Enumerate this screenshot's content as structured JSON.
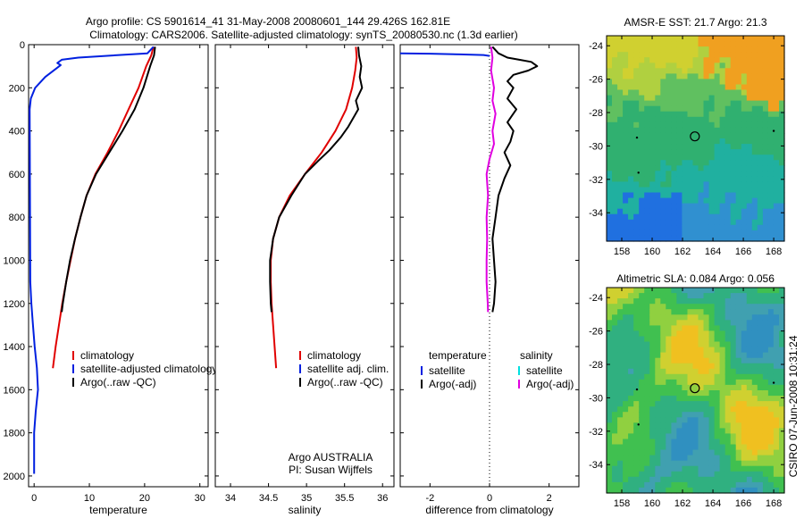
{
  "header": {
    "line1": "Argo profile: CS 5901614_41 31-May-2008 20080601_144 29.426S 162.81E",
    "line2": "Climatology: CARS2006. Satellite-adjusted climatology: synTS_20080530.nc (1.3d earlier)"
  },
  "side_text": "CSIRO 07-Jun-2008 10:31:24",
  "colors": {
    "climatology": "#e00000",
    "satellite": "#0020e0",
    "argo": "#000000",
    "salinity_satellite": "#00e0e0",
    "salinity_argo": "#e000e0"
  },
  "chart_data": [
    {
      "id": "temperature",
      "type": "line",
      "xlabel": "temperature",
      "ylabel": "",
      "xlim": [
        -1,
        31.5
      ],
      "ylim": [
        2050,
        0
      ],
      "x_ticks": [
        0,
        10,
        20,
        30
      ],
      "y_ticks": [
        0,
        200,
        400,
        600,
        800,
        1000,
        1200,
        1400,
        1600,
        1800,
        2000
      ],
      "legend": [
        "climatology",
        "satellite-adjusted climatology",
        "Argo(..raw -QC)"
      ],
      "series": [
        {
          "name": "climatology",
          "color": "#e00000",
          "width": 2,
          "points": [
            [
              21.6,
              10
            ],
            [
              21.2,
              50
            ],
            [
              20.3,
              100
            ],
            [
              18.9,
              200
            ],
            [
              17.1,
              300
            ],
            [
              15.3,
              400
            ],
            [
              13.3,
              500
            ],
            [
              11.1,
              600
            ],
            [
              9.5,
              700
            ],
            [
              8.4,
              800
            ],
            [
              7.4,
              900
            ],
            [
              6.6,
              1000
            ],
            [
              5.8,
              1100
            ],
            [
              5.1,
              1200
            ],
            [
              4.5,
              1300
            ],
            [
              3.9,
              1400
            ],
            [
              3.4,
              1500
            ]
          ]
        },
        {
          "name": "satellite-adjusted climatology",
          "color": "#0020e0",
          "width": 2,
          "points": [
            [
              21.6,
              10
            ],
            [
              20.5,
              40
            ],
            [
              8.0,
              60
            ],
            [
              5.0,
              70
            ],
            [
              4.2,
              85
            ],
            [
              4.8,
              95
            ],
            [
              2.0,
              150
            ],
            [
              0.2,
              200
            ],
            [
              -0.6,
              250
            ],
            [
              -0.8,
              300
            ],
            [
              -0.7,
              1100
            ],
            [
              -0.5,
              1200
            ],
            [
              -0.2,
              1300
            ],
            [
              0.1,
              1400
            ],
            [
              0.5,
              1500
            ],
            [
              0.7,
              1600
            ],
            [
              0.3,
              1700
            ],
            [
              0.0,
              1800
            ],
            [
              0.0,
              1900
            ],
            [
              0.0,
              1990
            ]
          ]
        },
        {
          "name": "Argo(..raw -QC)",
          "color": "#000000",
          "width": 2,
          "points": [
            [
              21.9,
              10
            ],
            [
              21.7,
              50
            ],
            [
              21.0,
              100
            ],
            [
              19.8,
              200
            ],
            [
              18.2,
              300
            ],
            [
              16.0,
              400
            ],
            [
              13.6,
              500
            ],
            [
              11.2,
              600
            ],
            [
              9.5,
              700
            ],
            [
              8.4,
              800
            ],
            [
              7.4,
              900
            ],
            [
              6.5,
              1000
            ],
            [
              5.8,
              1100
            ],
            [
              5.2,
              1200
            ],
            [
              5.0,
              1240
            ]
          ]
        }
      ]
    },
    {
      "id": "salinity",
      "type": "line",
      "xlabel": "salinity",
      "ylabel": "",
      "xlim": [
        33.8,
        36.15
      ],
      "ylim": [
        2050,
        0
      ],
      "x_ticks": [
        34,
        34.5,
        35,
        35.5,
        36
      ],
      "y_ticks": [
        0,
        200,
        400,
        600,
        800,
        1000,
        1200,
        1400,
        1600,
        1800,
        2000
      ],
      "legend": [
        "climatology",
        "satellite adj. clim.",
        "Argo(..raw -QC)"
      ],
      "annotation": [
        "Argo AUSTRALIA",
        "PI: Susan Wijffels"
      ],
      "series": [
        {
          "name": "climatology",
          "color": "#e00000",
          "width": 2,
          "points": [
            [
              35.65,
              10
            ],
            [
              35.66,
              60
            ],
            [
              35.64,
              120
            ],
            [
              35.6,
              200
            ],
            [
              35.52,
              300
            ],
            [
              35.38,
              400
            ],
            [
              35.2,
              500
            ],
            [
              34.98,
              600
            ],
            [
              34.78,
              700
            ],
            [
              34.64,
              800
            ],
            [
              34.56,
              900
            ],
            [
              34.53,
              1000
            ],
            [
              34.53,
              1100
            ],
            [
              34.54,
              1200
            ],
            [
              34.56,
              1300
            ],
            [
              34.58,
              1400
            ],
            [
              34.6,
              1500
            ]
          ]
        },
        {
          "name": "Argo(..raw -QC)",
          "color": "#000000",
          "width": 2,
          "points": [
            [
              35.68,
              10
            ],
            [
              35.69,
              50
            ],
            [
              35.72,
              100
            ],
            [
              35.7,
              150
            ],
            [
              35.73,
              200
            ],
            [
              35.65,
              260
            ],
            [
              35.68,
              300
            ],
            [
              35.55,
              380
            ],
            [
              35.45,
              430
            ],
            [
              35.3,
              490
            ],
            [
              35.15,
              540
            ],
            [
              34.98,
              600
            ],
            [
              34.8,
              700
            ],
            [
              34.64,
              800
            ],
            [
              34.56,
              900
            ],
            [
              34.52,
              1000
            ],
            [
              34.52,
              1100
            ],
            [
              34.53,
              1200
            ],
            [
              34.54,
              1240
            ]
          ]
        }
      ]
    },
    {
      "id": "difference",
      "type": "line",
      "xlabel": "difference from climatology",
      "ylabel": "",
      "xlim": [
        -3.0,
        3.0
      ],
      "ylim": [
        2050,
        0
      ],
      "x_ticks": [
        -2,
        0,
        2
      ],
      "y_ticks": [
        0,
        200,
        400,
        600,
        800,
        1000,
        1200,
        1400,
        1600,
        1800,
        2000
      ],
      "legend_groups": [
        {
          "title": "temperature",
          "items": [
            "satellite",
            "Argo(-adj)"
          ]
        },
        {
          "title": "salinity",
          "items": [
            "satellite",
            "Argo(-adj)"
          ]
        }
      ],
      "series": [
        {
          "name": "temperature satellite",
          "color": "#0020e0",
          "width": 2,
          "points": [
            [
              -3.0,
              40
            ],
            [
              -2.0,
              42
            ],
            [
              -1.0,
              45
            ],
            [
              -0.2,
              48
            ],
            [
              0.0,
              52
            ]
          ]
        },
        {
          "name": "temperature Argo(-adj)",
          "color": "#000000",
          "width": 2,
          "points": [
            [
              0.1,
              10
            ],
            [
              0.3,
              40
            ],
            [
              0.6,
              60
            ],
            [
              1.0,
              70
            ],
            [
              1.4,
              80
            ],
            [
              1.6,
              100
            ],
            [
              1.3,
              120
            ],
            [
              0.8,
              140
            ],
            [
              0.6,
              170
            ],
            [
              0.8,
              200
            ],
            [
              0.6,
              250
            ],
            [
              0.9,
              300
            ],
            [
              0.6,
              360
            ],
            [
              0.8,
              400
            ],
            [
              0.7,
              450
            ],
            [
              0.5,
              500
            ],
            [
              0.7,
              560
            ],
            [
              0.5,
              620
            ],
            [
              0.3,
              700
            ],
            [
              0.2,
              800
            ],
            [
              0.1,
              900
            ],
            [
              0.15,
              1000
            ],
            [
              0.2,
              1100
            ],
            [
              0.15,
              1200
            ],
            [
              0.1,
              1240
            ]
          ]
        },
        {
          "name": "salinity Argo(-adj)",
          "color": "#e000e0",
          "width": 2,
          "points": [
            [
              0.05,
              10
            ],
            [
              0.1,
              60
            ],
            [
              0.05,
              120
            ],
            [
              0.15,
              200
            ],
            [
              0.1,
              260
            ],
            [
              0.2,
              320
            ],
            [
              0.1,
              400
            ],
            [
              0.15,
              460
            ],
            [
              0.0,
              530
            ],
            [
              -0.1,
              600
            ],
            [
              -0.05,
              700
            ],
            [
              -0.1,
              800
            ],
            [
              -0.08,
              900
            ],
            [
              -0.1,
              1000
            ],
            [
              -0.1,
              1100
            ],
            [
              -0.06,
              1200
            ],
            [
              -0.05,
              1240
            ]
          ]
        }
      ]
    },
    {
      "id": "amsr_sst_map",
      "type": "heatmap",
      "title": "AMSR-E SST: 21.7 Argo: 21.3",
      "xlim": [
        157,
        168.7
      ],
      "ylim": [
        -35.7,
        -23.4
      ],
      "x_ticks": [
        158,
        160,
        162,
        164,
        166,
        168
      ],
      "y_ticks": [
        -24,
        -26,
        -28,
        -30,
        -32,
        -34
      ],
      "marker": {
        "lon": 162.81,
        "lat": -29.426
      }
    },
    {
      "id": "altimetric_sla_map",
      "type": "heatmap",
      "title": "Altimetric SLA: 0.084 Argo: 0.056",
      "xlim": [
        157,
        168.7
      ],
      "ylim": [
        -35.7,
        -23.4
      ],
      "x_ticks": [
        158,
        160,
        162,
        164,
        166,
        168
      ],
      "y_ticks": [
        -24,
        -26,
        -28,
        -30,
        -32,
        -34
      ],
      "marker": {
        "lon": 162.81,
        "lat": -29.426
      }
    }
  ]
}
